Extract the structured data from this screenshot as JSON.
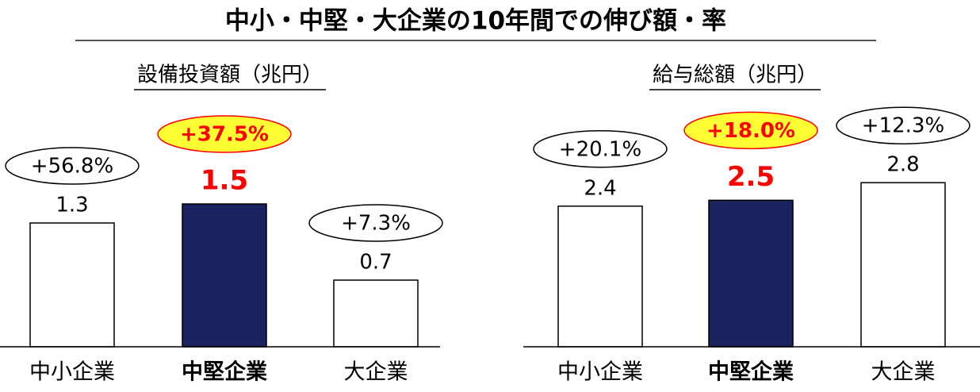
{
  "title": "中小・中堅・大企業の10年間での伸び額・率",
  "chart_data": [
    {
      "type": "bar",
      "title": "設備投資額（兆円）",
      "categories": [
        "中小企業",
        "中堅企業",
        "大企業"
      ],
      "values": [
        1.3,
        1.5,
        0.7
      ],
      "annotations": [
        "+56.8%",
        "+37.5%",
        "+7.3%"
      ],
      "ylim": [
        0,
        2
      ],
      "color": "#ffffff",
      "highlight": 1,
      "highlight_color": "#1a2360"
    },
    {
      "type": "bar",
      "title": "給与総額（兆円）",
      "categories": [
        "中小企業",
        "中堅企業",
        "大企業"
      ],
      "values": [
        2.4,
        2.5,
        2.8
      ],
      "annotations": [
        "+20.1%",
        "+18.0%",
        "+12.3%"
      ],
      "ylim": [
        0,
        3.25
      ],
      "color": "#ffffff",
      "highlight": 1,
      "highlight_color": "#1a2360"
    }
  ]
}
